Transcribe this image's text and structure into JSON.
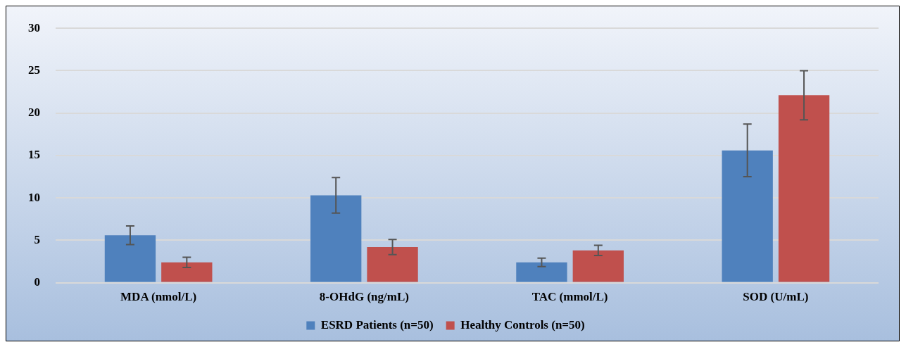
{
  "chart_data": {
    "type": "bar",
    "categories": [
      "MDA (nmol/L)",
      "8-OHdG (ng/mL)",
      "TAC (mmol/L)",
      "SOD (U/mL)"
    ],
    "series": [
      {
        "name": "ESRD Patients (n=50)",
        "color": "#4f81bd",
        "values": [
          5.6,
          10.3,
          2.4,
          15.6
        ],
        "errors": [
          1.1,
          2.1,
          0.5,
          3.1
        ]
      },
      {
        "name": "Healthy Controls (n=50)",
        "color": "#c0504d",
        "values": [
          2.4,
          4.2,
          3.8,
          22.1
        ],
        "errors": [
          0.6,
          0.9,
          0.6,
          2.9
        ]
      }
    ],
    "ylim": [
      0,
      30
    ],
    "yticks": [
      0,
      5,
      10,
      15,
      20,
      25,
      30
    ],
    "grid": "y",
    "legend": "bottom"
  }
}
